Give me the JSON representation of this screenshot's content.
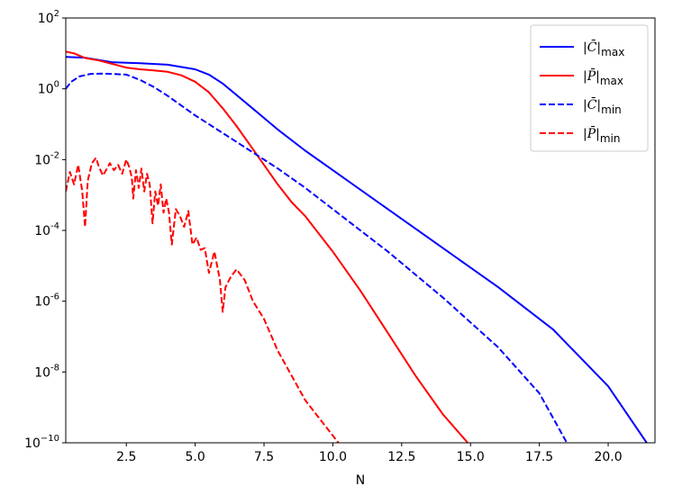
{
  "chart_data": {
    "type": "line",
    "xlabel": "N",
    "ylabel": "",
    "xlim": [
      0.3,
      21.7
    ],
    "ylim_log10": [
      -10,
      2
    ],
    "yscale": "log",
    "grid": false,
    "legend_placement": "top-right",
    "x_ticks": [
      {
        "value": 2.5,
        "label": "2.5"
      },
      {
        "value": 5.0,
        "label": "5.0"
      },
      {
        "value": 7.5,
        "label": "7.5"
      },
      {
        "value": 10.0,
        "label": "10.0"
      },
      {
        "value": 12.5,
        "label": "12.5"
      },
      {
        "value": 15.0,
        "label": "15.0"
      },
      {
        "value": 17.5,
        "label": "17.5"
      },
      {
        "value": 20.0,
        "label": "20.0"
      }
    ],
    "y_ticks": [
      {
        "exp": 2,
        "base": "10",
        "sup": "2"
      },
      {
        "exp": 0,
        "base": "10",
        "sup": "0"
      },
      {
        "exp": -2,
        "base": "10",
        "sup": "-2"
      },
      {
        "exp": -4,
        "base": "10",
        "sup": "-4"
      },
      {
        "exp": -6,
        "base": "10",
        "sup": "-6"
      },
      {
        "exp": -8,
        "base": "10",
        "sup": "-8"
      },
      {
        "exp": -10,
        "base": "10",
        "sup": "−10"
      }
    ],
    "series": [
      {
        "legend": {
          "base": "|C̄|",
          "sub": "max"
        },
        "color": "#0000ff",
        "dash": "solid",
        "x": [
          0.3,
          1.0,
          2.0,
          3.0,
          4.0,
          5.0,
          5.5,
          6.0,
          7.0,
          8.0,
          9.0,
          10.0,
          12.0,
          14.0,
          16.0,
          18.0,
          20.0,
          21.4
        ],
        "log10_y": [
          0.9,
          0.88,
          0.75,
          0.72,
          0.68,
          0.55,
          0.4,
          0.15,
          -0.5,
          -1.15,
          -1.75,
          -2.3,
          -3.4,
          -4.5,
          -5.6,
          -6.8,
          -8.4,
          -10.0
        ]
      },
      {
        "legend": {
          "base": "|P̄|",
          "sub": "max"
        },
        "color": "#ff0000",
        "dash": "solid",
        "x": [
          0.3,
          0.6,
          1.0,
          1.5,
          2.0,
          2.5,
          3.0,
          3.5,
          4.0,
          4.5,
          5.0,
          5.5,
          6.0,
          6.5,
          7.0,
          7.5,
          8.0,
          8.5,
          9.0,
          10.0,
          11.0,
          12.0,
          13.0,
          14.0,
          14.9
        ],
        "log10_y": [
          1.05,
          1.0,
          0.87,
          0.8,
          0.7,
          0.6,
          0.55,
          0.52,
          0.48,
          0.38,
          0.2,
          -0.1,
          -0.55,
          -1.05,
          -1.6,
          -2.15,
          -2.7,
          -3.2,
          -3.6,
          -4.6,
          -5.7,
          -6.9,
          -8.1,
          -9.2,
          -10.0
        ]
      },
      {
        "legend": {
          "base": "|C̄|",
          "sub": "min"
        },
        "color": "#0000ff",
        "dash": "dashed",
        "x": [
          0.3,
          0.5,
          0.8,
          1.2,
          1.6,
          2.0,
          2.5,
          3.0,
          3.5,
          4.0,
          5.0,
          6.0,
          7.0,
          8.0,
          9.0,
          10.0,
          12.0,
          14.0,
          16.0,
          17.5,
          18.5
        ],
        "log10_y": [
          0.0,
          0.2,
          0.35,
          0.42,
          0.43,
          0.42,
          0.4,
          0.25,
          0.05,
          -0.2,
          -0.75,
          -1.25,
          -1.75,
          -2.25,
          -2.8,
          -3.4,
          -4.6,
          -5.9,
          -7.3,
          -8.6,
          -10.0
        ]
      },
      {
        "legend": {
          "base": "|P̄|",
          "sub": "min"
        },
        "color": "#ff0000",
        "dash": "dashed",
        "x": [
          0.3,
          0.45,
          0.6,
          0.75,
          0.9,
          1.0,
          1.1,
          1.25,
          1.4,
          1.5,
          1.65,
          1.8,
          1.9,
          2.05,
          2.2,
          2.35,
          2.5,
          2.6,
          2.7,
          2.75,
          2.85,
          2.95,
          3.05,
          3.15,
          3.25,
          3.35,
          3.45,
          3.55,
          3.65,
          3.75,
          3.85,
          3.95,
          4.05,
          4.15,
          4.3,
          4.45,
          4.6,
          4.75,
          4.9,
          5.05,
          5.2,
          5.35,
          5.5,
          5.7,
          5.9,
          6.0,
          6.1,
          6.3,
          6.5,
          6.8,
          7.1,
          7.5,
          8.0,
          8.5,
          9.0,
          9.5,
          10.2
        ],
        "log10_y": [
          -2.9,
          -2.35,
          -2.7,
          -2.15,
          -2.9,
          -3.9,
          -2.6,
          -2.1,
          -1.95,
          -2.2,
          -2.45,
          -2.25,
          -2.1,
          -2.3,
          -2.15,
          -2.4,
          -2.0,
          -2.2,
          -2.5,
          -3.1,
          -2.3,
          -2.8,
          -2.25,
          -2.9,
          -2.4,
          -2.7,
          -3.8,
          -2.9,
          -3.3,
          -2.7,
          -3.5,
          -3.1,
          -3.5,
          -4.4,
          -3.4,
          -3.6,
          -3.9,
          -3.45,
          -4.4,
          -4.2,
          -4.55,
          -4.5,
          -5.2,
          -4.6,
          -5.4,
          -6.3,
          -5.6,
          -5.3,
          -5.1,
          -5.4,
          -6.0,
          -6.5,
          -7.4,
          -8.1,
          -8.8,
          -9.3,
          -10.0
        ]
      }
    ]
  }
}
